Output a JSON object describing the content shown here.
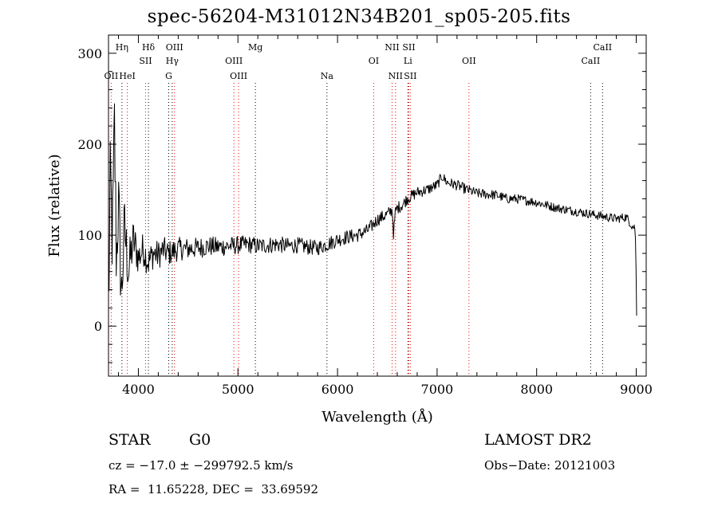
{
  "chart_data": {
    "type": "line",
    "title": "spec-56204-M31012N34B201_sp05-205.fits",
    "xlabel": "Wavelength (Å)",
    "ylabel": "Flux (relative)",
    "xlim": [
      3700,
      9100
    ],
    "ylim": [
      -55,
      320
    ],
    "xticks": [
      4000,
      5000,
      6000,
      7000,
      8000,
      9000
    ],
    "yticks": [
      0,
      100,
      200,
      300
    ],
    "grid": false,
    "series": [
      {
        "anchors_x": [
          3700,
          3720,
          3740,
          3760,
          3780,
          3800,
          3830,
          3860,
          3900,
          3950,
          4000,
          4050,
          4100,
          4150,
          4200,
          4250,
          4300,
          4350,
          4400,
          4500,
          4600,
          4700,
          4800,
          4900,
          5000,
          5100,
          5200,
          5300,
          5400,
          5500,
          5600,
          5700,
          5800,
          5900,
          6000,
          6100,
          6200,
          6300,
          6400,
          6500,
          6550,
          6563,
          6580,
          6600,
          6650,
          6700,
          6800,
          6900,
          7000,
          7050,
          7100,
          7200,
          7300,
          7400,
          7500,
          7600,
          7700,
          7800,
          7900,
          8000,
          8100,
          8200,
          8300,
          8400,
          8500,
          8600,
          8700,
          8800,
          8900,
          8960,
          8990,
          9000,
          9005
        ],
        "anchors_y": [
          20,
          160,
          90,
          220,
          70,
          140,
          30,
          110,
          60,
          95,
          75,
          85,
          70,
          80,
          78,
          84,
          80,
          82,
          85,
          85,
          86,
          88,
          87,
          88,
          89,
          90,
          88,
          89,
          90,
          88,
          89,
          87,
          86,
          90,
          95,
          98,
          100,
          105,
          117,
          123,
          128,
          100,
          125,
          130,
          133,
          140,
          147,
          150,
          155,
          165,
          158,
          155,
          150,
          146,
          145,
          144,
          140,
          140,
          138,
          136,
          133,
          130,
          128,
          126,
          124,
          122,
          120,
          118,
          120,
          110,
          108,
          50,
          2
        ],
        "noise_amp_x": [
          3700,
          3800,
          3900,
          4000,
          4300,
          4500,
          5000,
          5500,
          6000,
          6500,
          7000,
          8000,
          9000
        ],
        "noise_amp_y": [
          60,
          45,
          30,
          20,
          14,
          12,
          10,
          9,
          8,
          7,
          6,
          5,
          5
        ]
      }
    ],
    "lines": [
      {
        "label": "OII",
        "x": 3727,
        "row": 2,
        "color": "#ff0000"
      },
      {
        "label": "Hη",
        "x": 3835,
        "row": 0,
        "color": "#000000"
      },
      {
        "label": "HeI",
        "x": 3889,
        "row": 2,
        "color": "#ff0000"
      },
      {
        "label": "Hδ",
        "x": 4101,
        "row": 0,
        "color": "#000000"
      },
      {
        "label": "SII",
        "x": 4072,
        "row": 1,
        "color": "#ff0000"
      },
      {
        "label": "OIII",
        "x": 4363,
        "row": 0,
        "color": "#ff0000"
      },
      {
        "label": "Hγ",
        "x": 4340,
        "row": 1,
        "color": "#000000"
      },
      {
        "label": "G",
        "x": 4305,
        "row": 2,
        "color": "#000000"
      },
      {
        "label": "OIII",
        "x": 4959,
        "row": 1,
        "color": "#ff0000"
      },
      {
        "label": "OIII",
        "x": 5007,
        "row": 2,
        "color": "#ff0000"
      },
      {
        "label": "Mg",
        "x": 5175,
        "row": 0,
        "color": "#000000"
      },
      {
        "label": "Na",
        "x": 5894,
        "row": 2,
        "color": "#000000"
      },
      {
        "label": "OI",
        "x": 6363,
        "row": 1,
        "color": "#ff0000"
      },
      {
        "label": "NII",
        "x": 6548,
        "row": 0,
        "color": "#ff0000"
      },
      {
        "label": "NII",
        "x": 6583,
        "row": 2,
        "color": "#ff0000"
      },
      {
        "label": "SII",
        "x": 6716,
        "row": 0,
        "color": "#ff0000"
      },
      {
        "label": "Li",
        "x": 6707,
        "row": 1,
        "color": "#000000"
      },
      {
        "label": "SII",
        "x": 6731,
        "row": 2,
        "color": "#ff0000"
      },
      {
        "label": "OII",
        "x": 7320,
        "row": 1,
        "color": "#ff0000"
      },
      {
        "label": "CaII",
        "x": 8662,
        "row": 0,
        "color": "#000000"
      },
      {
        "label": "CaII",
        "x": 8542,
        "row": 1,
        "color": "#000000"
      }
    ]
  },
  "info": {
    "objtype": "STAR",
    "subclass": "G0",
    "survey": "LAMOST DR2",
    "cz": "cz = −17.0 ± −299792.5 km/s",
    "obs_date": "Obs−Date: 20121003",
    "radec": "RA =  11.65228, DEC =  33.69592"
  }
}
